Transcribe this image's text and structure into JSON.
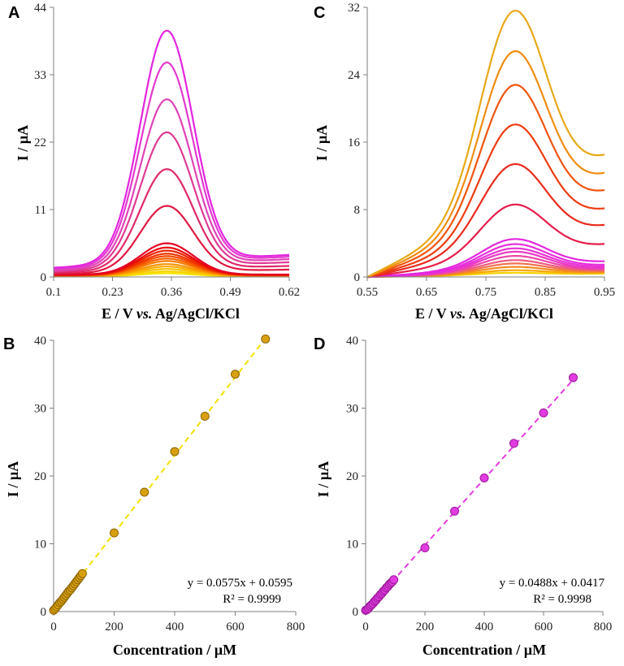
{
  "chart_data": [
    {
      "id": "A",
      "type": "line",
      "panel_label": "A",
      "xlabel": "E / V",
      "xlabel_italic": "vs.",
      "xlabel_suffix": "Ag/AgCl/KCl",
      "ylabel": "I / µA",
      "xlim": [
        0.1,
        0.62
      ],
      "ylim": [
        0,
        44
      ],
      "xticks": [
        "0.1",
        "0.23",
        "0.36",
        "0.49",
        "0.62"
      ],
      "xtick_values": [
        0.1,
        0.23,
        0.36,
        0.49,
        0.62
      ],
      "yticks": [
        "0",
        "11",
        "22",
        "33",
        "44"
      ],
      "ytick_values": [
        0,
        11,
        22,
        33,
        44
      ],
      "peak_potential": 0.35,
      "peak_width": 0.058,
      "series": [
        {
          "peak": 0.6,
          "baseline_left": 0.1,
          "baseline_right": 0.1,
          "color": "#f6e600"
        },
        {
          "peak": 0.9,
          "baseline_left": 0.12,
          "baseline_right": 0.12,
          "color": "#f8d400"
        },
        {
          "peak": 1.3,
          "baseline_left": 0.15,
          "baseline_right": 0.15,
          "color": "#f9c000"
        },
        {
          "peak": 1.7,
          "baseline_left": 0.18,
          "baseline_right": 0.18,
          "color": "#faaa00"
        },
        {
          "peak": 2.1,
          "baseline_left": 0.2,
          "baseline_right": 0.2,
          "color": "#fa9200"
        },
        {
          "peak": 2.6,
          "baseline_left": 0.22,
          "baseline_right": 0.22,
          "color": "#f97a00"
        },
        {
          "peak": 3.0,
          "baseline_left": 0.25,
          "baseline_right": 0.25,
          "color": "#f76200"
        },
        {
          "peak": 3.4,
          "baseline_left": 0.28,
          "baseline_right": 0.3,
          "color": "#f44a00"
        },
        {
          "peak": 3.8,
          "baseline_left": 0.3,
          "baseline_right": 0.32,
          "color": "#f03400"
        },
        {
          "peak": 4.3,
          "baseline_left": 0.32,
          "baseline_right": 0.34,
          "color": "#ec2000"
        },
        {
          "peak": 4.8,
          "baseline_left": 0.35,
          "baseline_right": 0.36,
          "color": "#e80a0a"
        },
        {
          "peak": 5.5,
          "baseline_left": 0.38,
          "baseline_right": 0.4,
          "color": "#e30022"
        },
        {
          "peak": 11.6,
          "baseline_left": 0.5,
          "baseline_right": 1.2,
          "color": "#e01840"
        },
        {
          "peak": 17.6,
          "baseline_left": 0.7,
          "baseline_right": 1.8,
          "color": "#e0286a"
        },
        {
          "peak": 23.6,
          "baseline_left": 0.9,
          "baseline_right": 2.4,
          "color": "#df3a95"
        },
        {
          "peak": 29.0,
          "baseline_left": 1.1,
          "baseline_right": 2.9,
          "color": "#e043b8"
        },
        {
          "peak": 35.0,
          "baseline_left": 1.3,
          "baseline_right": 3.3,
          "color": "#e33ad0"
        },
        {
          "peak": 40.2,
          "baseline_left": 1.5,
          "baseline_right": 3.6,
          "color": "#e424e0"
        }
      ]
    },
    {
      "id": "C",
      "type": "line",
      "panel_label": "C",
      "xlabel": "E / V",
      "xlabel_italic": "vs.",
      "xlabel_suffix": "Ag/AgCl/KCl",
      "ylabel": "I / µA",
      "xlim": [
        0.55,
        0.95
      ],
      "ylim": [
        0,
        32
      ],
      "xticks": [
        "0.55",
        "0.65",
        "0.75",
        "0.85",
        "0.95"
      ],
      "xtick_values": [
        0.55,
        0.65,
        0.75,
        0.85,
        0.95
      ],
      "yticks": [
        "0",
        "8",
        "16",
        "24",
        "32"
      ],
      "ytick_values": [
        0,
        8,
        16,
        24,
        32
      ],
      "peak_potential": 0.8,
      "peak_width": 0.055,
      "series": [
        {
          "peak": 0.5,
          "baseline_left": 0.0,
          "baseline_right": 0.4,
          "color": "#f8d000"
        },
        {
          "peak": 0.8,
          "baseline_left": 0.0,
          "baseline_right": 0.5,
          "color": "#f6a800"
        },
        {
          "peak": 1.2,
          "baseline_left": 0.0,
          "baseline_right": 0.6,
          "color": "#f48a20"
        },
        {
          "peak": 1.6,
          "baseline_left": 0.0,
          "baseline_right": 0.7,
          "color": "#f27050"
        },
        {
          "peak": 2.0,
          "baseline_left": 0.0,
          "baseline_right": 0.8,
          "color": "#ef5a80"
        },
        {
          "peak": 2.5,
          "baseline_left": 0.0,
          "baseline_right": 0.9,
          "color": "#ec46a8"
        },
        {
          "peak": 3.0,
          "baseline_left": 0.0,
          "baseline_right": 1.0,
          "color": "#ea38c4"
        },
        {
          "peak": 3.4,
          "baseline_left": 0.0,
          "baseline_right": 1.2,
          "color": "#e832d4"
        },
        {
          "peak": 3.9,
          "baseline_left": 0.0,
          "baseline_right": 1.4,
          "color": "#e72cdc"
        },
        {
          "peak": 4.5,
          "baseline_left": 0.0,
          "baseline_right": 1.8,
          "color": "#e426de"
        },
        {
          "peak": 8.6,
          "baseline_left": 0.0,
          "baseline_right": 3.8,
          "color": "#e61e4a"
        },
        {
          "peak": 13.4,
          "baseline_left": 0.0,
          "baseline_right": 6.0,
          "color": "#ea2a1c"
        },
        {
          "peak": 18.1,
          "baseline_left": 0.0,
          "baseline_right": 7.9,
          "color": "#ee3c10"
        },
        {
          "peak": 22.8,
          "baseline_left": 0.0,
          "baseline_right": 10.0,
          "color": "#f05410"
        },
        {
          "peak": 26.8,
          "baseline_left": 0.0,
          "baseline_right": 12.0,
          "color": "#f08c10"
        },
        {
          "peak": 31.6,
          "baseline_left": 0.0,
          "baseline_right": 14.1,
          "color": "#e8a818"
        }
      ]
    },
    {
      "id": "B",
      "type": "scatter",
      "panel_label": "B",
      "xlabel": "Concentration / µM",
      "ylabel": "I / µA",
      "xlim": [
        0,
        800
      ],
      "ylim": [
        0,
        40
      ],
      "xticks": [
        "0",
        "200",
        "400",
        "600",
        "800"
      ],
      "xtick_values": [
        0,
        200,
        400,
        600,
        800
      ],
      "yticks": [
        "0",
        "10",
        "20",
        "30",
        "40"
      ],
      "ytick_values": [
        0,
        10,
        20,
        30,
        40
      ],
      "marker_color": "#d9a010",
      "marker_edge": "#8a6400",
      "fit_color": "#f5e000",
      "equation": "y = 0.0575x + 0.0595",
      "r_squared": "R² = 0.9999",
      "fit": {
        "slope": 0.0575,
        "intercept": 0.0595,
        "x_range": [
          0,
          700
        ]
      },
      "x": [
        0,
        5,
        10,
        15,
        20,
        25,
        30,
        35,
        40,
        45,
        50,
        55,
        60,
        65,
        70,
        75,
        80,
        85,
        90,
        95,
        200,
        300,
        400,
        500,
        600,
        700
      ],
      "y": [
        0.2,
        0.4,
        0.7,
        1.0,
        1.3,
        1.5,
        1.8,
        2.1,
        2.4,
        2.7,
        3.0,
        3.2,
        3.5,
        3.8,
        4.1,
        4.4,
        4.7,
        5.0,
        5.3,
        5.6,
        11.6,
        17.6,
        23.6,
        28.8,
        35.0,
        40.2
      ]
    },
    {
      "id": "D",
      "type": "scatter",
      "panel_label": "D",
      "xlabel": "Concentration / µM",
      "ylabel": "I / µA",
      "xlim": [
        0,
        800
      ],
      "ylim": [
        0,
        40
      ],
      "xticks": [
        "0",
        "200",
        "400",
        "600",
        "800"
      ],
      "xtick_values": [
        0,
        200,
        400,
        600,
        800
      ],
      "yticks": [
        "0",
        "10",
        "20",
        "30",
        "40"
      ],
      "ytick_values": [
        0,
        10,
        20,
        30,
        40
      ],
      "marker_color": "#e23be0",
      "marker_edge": "#9a1a98",
      "fit_color": "#e23be0",
      "equation": "y = 0.0488x + 0.0417",
      "r_squared": "R² = 0.9998",
      "fit": {
        "slope": 0.0488,
        "intercept": 0.0417,
        "x_range": [
          0,
          700
        ]
      },
      "x": [
        0,
        5,
        10,
        15,
        20,
        25,
        30,
        35,
        40,
        45,
        50,
        55,
        60,
        65,
        70,
        75,
        80,
        85,
        90,
        95,
        200,
        300,
        400,
        500,
        600,
        700
      ],
      "y": [
        0.2,
        0.3,
        0.5,
        0.8,
        1.0,
        1.2,
        1.5,
        1.7,
        2.0,
        2.2,
        2.5,
        2.7,
        3.0,
        3.2,
        3.5,
        3.7,
        4.0,
        4.2,
        4.4,
        4.7,
        9.4,
        14.8,
        19.7,
        24.8,
        29.3,
        34.5
      ]
    }
  ]
}
